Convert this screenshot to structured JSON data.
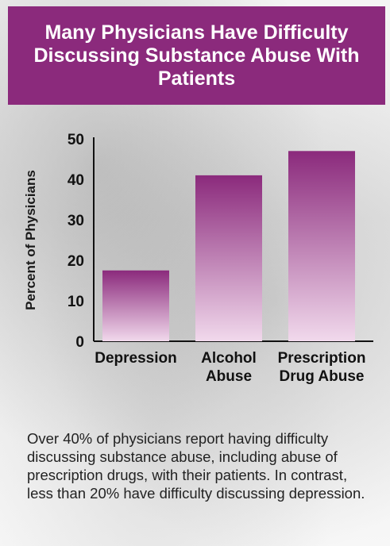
{
  "chart_data": {
    "type": "bar",
    "title": "Many Physicians Have Difficulty Discussing Substance Abuse With Patients",
    "ylabel": "Percent of Physicians",
    "xlabel": "",
    "ylim": [
      0,
      50
    ],
    "yticks": [
      0,
      10,
      20,
      30,
      40,
      50
    ],
    "categories": [
      "Depression",
      "Alcohol Abuse",
      "Prescription Drug Abuse"
    ],
    "category_lines": [
      [
        "Depression"
      ],
      [
        "Alcohol",
        "Abuse"
      ],
      [
        "Prescription",
        "Drug Abuse"
      ]
    ],
    "values": [
      17.5,
      41,
      47
    ],
    "grid": false,
    "legend": "none"
  },
  "colors": {
    "banner": "#8b2a7c",
    "bar_top": "#8b2a7c",
    "bar_bottom": "#f1d9ec"
  },
  "caption": "Over 40% of physicians report having difficulty discussing substance abuse, including abuse of prescription drugs, with their patients. In contrast, less than 20% have difficulty discussing depression."
}
